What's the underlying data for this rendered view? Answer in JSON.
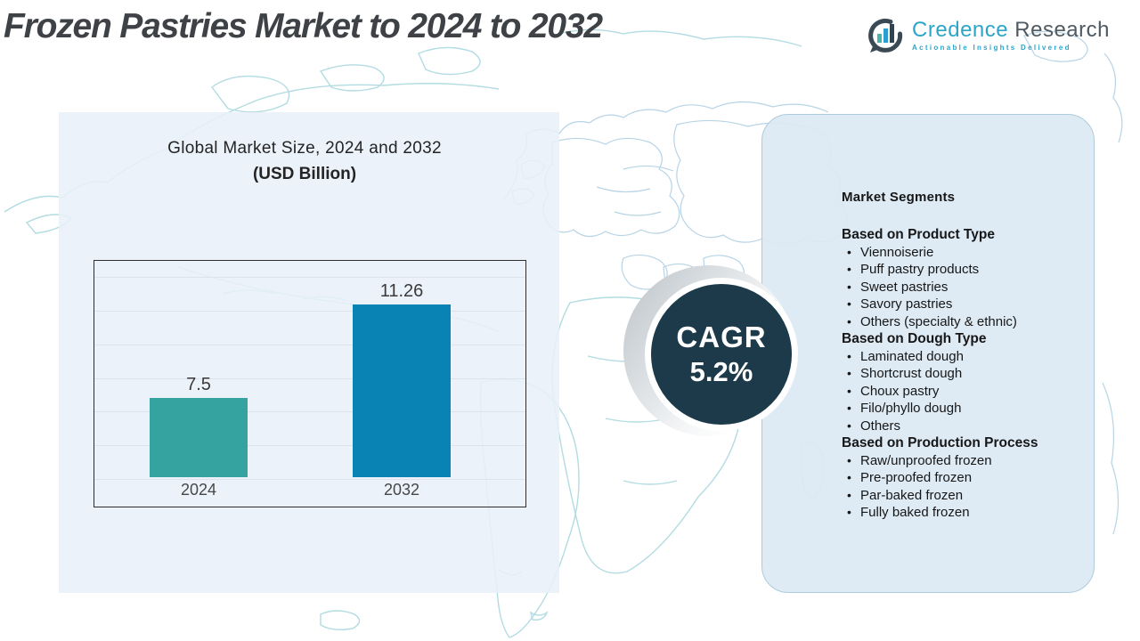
{
  "header": {
    "title": "Frozen Pastries Market to 2024 to 2032",
    "logo": {
      "brand_primary": "Credence",
      "brand_secondary": "Research",
      "tagline": "Actionable Insights Delivered"
    }
  },
  "chart_data": {
    "type": "bar",
    "title": "Global Market Size, 2024 and 2032",
    "subtitle": "(USD Billion)",
    "categories": [
      "2024",
      "2032"
    ],
    "values": [
      7.5,
      11.26
    ],
    "value_labels": [
      "7.5",
      "11.26"
    ],
    "ylim": [
      4.3,
      13.1
    ],
    "grid": true,
    "legend": false,
    "bar_colors": [
      "#35a4a1",
      "#0983b3"
    ]
  },
  "cagr": {
    "label": "CAGR",
    "value": "5.2%"
  },
  "segments_panel": {
    "heading": "Market Segments",
    "groups": [
      {
        "heading": "Based on Product Type",
        "items": [
          "Viennoiserie",
          "Puff pastry products",
          "Sweet pastries",
          "Savory pastries",
          "Others (specialty & ethnic)"
        ]
      },
      {
        "heading": "Based on Dough Type",
        "items": [
          "Laminated dough",
          "Shortcrust dough",
          "Choux pastry",
          "Filo/phyllo dough",
          "Others"
        ]
      },
      {
        "heading": "Based on Production Process",
        "items": [
          "Raw/unproofed frozen",
          "Pre-proofed frozen",
          "Par-baked frozen",
          "Fully baked frozen"
        ]
      }
    ]
  },
  "colors": {
    "cagr_circle": "#1c3a4a",
    "brand_teal": "#2ba6c8",
    "title_gray": "#3e4146",
    "map_line_blue": "#b7d4e6",
    "map_line_teal": "#b2dce2"
  }
}
